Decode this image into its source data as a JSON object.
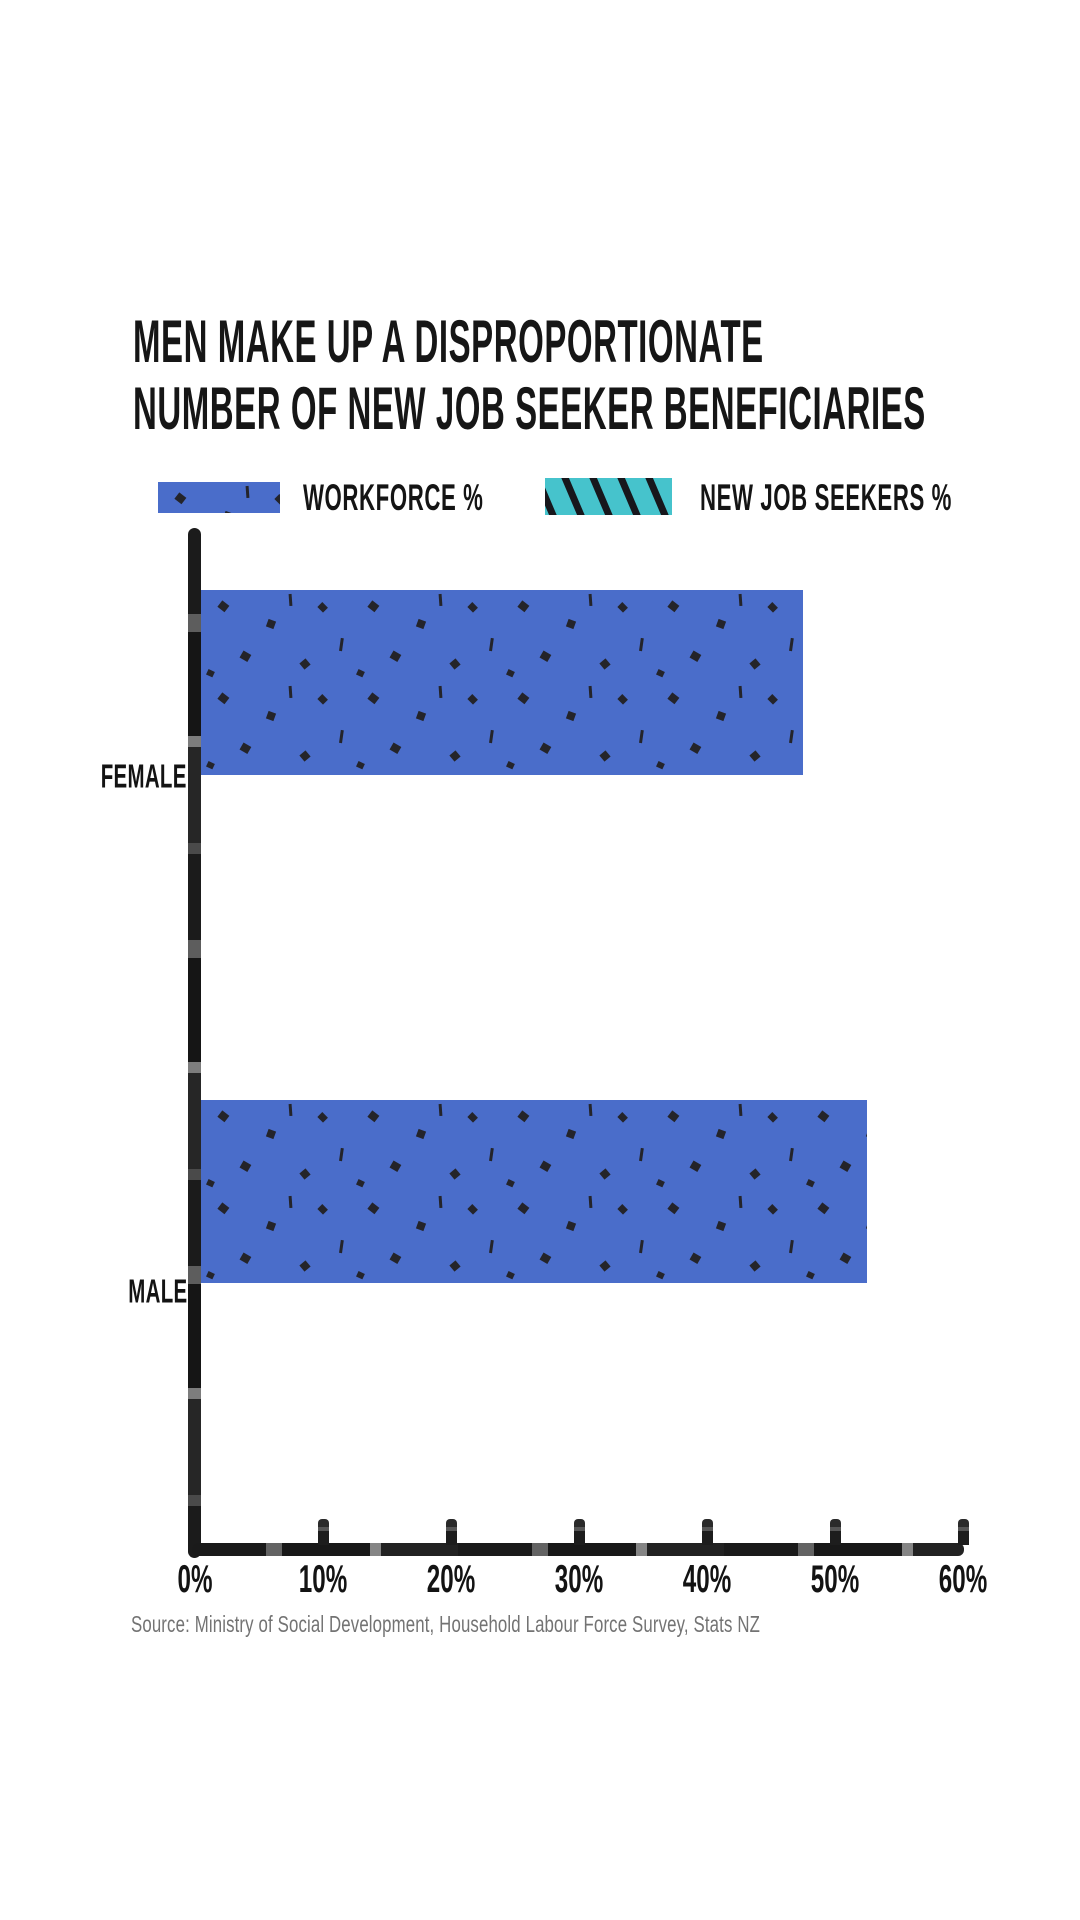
{
  "title": {
    "line1": "MEN MAKE UP A DISPROPORTIONATE",
    "line2": "NUMBER OF NEW JOB SEEKER BENEFICIARIES"
  },
  "legend": [
    {
      "label": "WORKFORCE %",
      "swatch": "blue-speckled-swatch"
    },
    {
      "label": "NEW JOB SEEKERS %",
      "swatch": "teal-striped-swatch"
    }
  ],
  "source": "Source: Ministry of Social Development, Household Labour Force Survey, Stats NZ",
  "colors": {
    "workforce_blue": "#4a6dca",
    "seekers_teal": "#46c3cc",
    "speckle_dark": "#24242a",
    "stripe_dark": "#17171c",
    "axis_ink": "#1c1c1c",
    "title_ink": "#161616",
    "source_gray": "#737373"
  },
  "chart_data": {
    "type": "bar",
    "orientation": "horizontal",
    "title": "MEN MAKE UP A DISPROPORTIONATE NUMBER OF NEW JOB SEEKER BENEFICIARIES",
    "categories": [
      "FEMALE",
      "MALE"
    ],
    "series": [
      {
        "name": "WORKFORCE %",
        "color": "#4a6dca",
        "fill_pattern": "dark speckles",
        "values": [
          47,
          52
        ]
      },
      {
        "name": "NEW JOB SEEKERS %",
        "color": "#46c3cc",
        "fill_pattern": "black diagonal stripes",
        "values": [
          null,
          null
        ]
      }
    ],
    "xlim": [
      0,
      60
    ],
    "x_ticks": [
      "0%",
      "10%",
      "20%",
      "30%",
      "40%",
      "50%",
      "60%"
    ],
    "grid": false,
    "legend_position": "top",
    "source": "Source: Ministry of Social Development, Household Labour Force Survey, Stats NZ"
  }
}
